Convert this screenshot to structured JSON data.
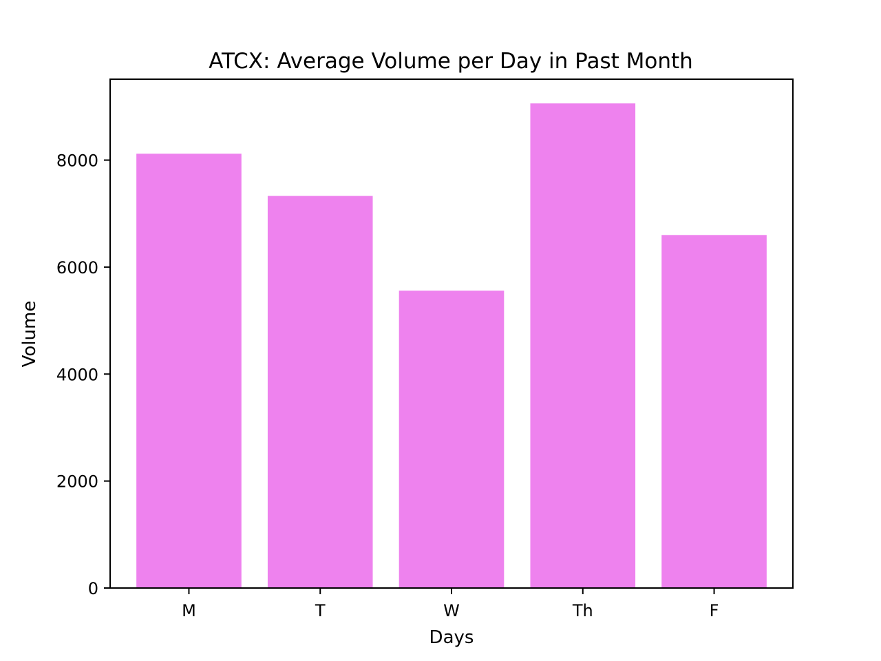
{
  "chart_data": {
    "type": "bar",
    "title": "ATCX: Average Volume per Day in Past Month",
    "xlabel": "Days",
    "ylabel": "Volume",
    "categories": [
      "M",
      "T",
      "W",
      "Th",
      "F"
    ],
    "values": [
      8120,
      7330,
      5560,
      9060,
      6600
    ],
    "ylim": [
      0,
      9513
    ],
    "yticks": [
      0,
      2000,
      4000,
      6000,
      8000
    ],
    "bar_color": "#ee82ee",
    "grid": false,
    "legend": "none"
  }
}
